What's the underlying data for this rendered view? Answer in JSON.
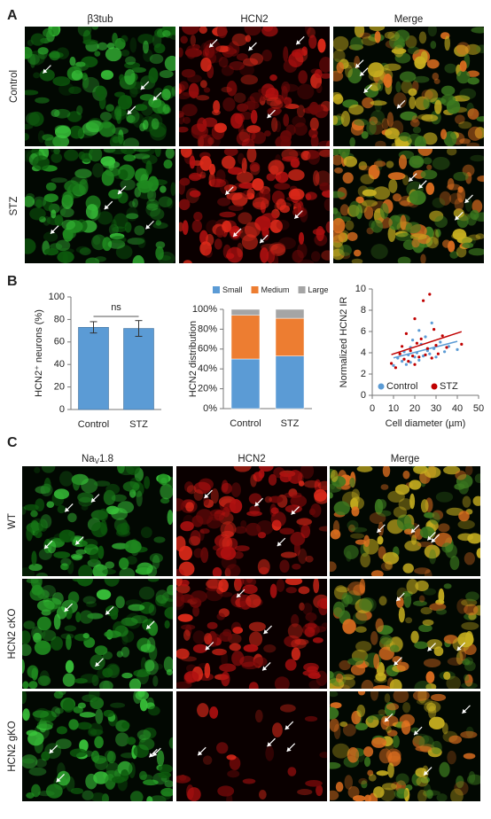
{
  "panel_labels": [
    "A",
    "B",
    "C"
  ],
  "panel_a": {
    "columns": [
      "β3tub",
      "HCN2",
      "Merge"
    ],
    "rows": [
      "Control",
      "STZ"
    ]
  },
  "panel_c": {
    "columns": [
      {
        "base": "Na",
        "sub": "V",
        "rest": "1.8"
      },
      "HCN2",
      "Merge"
    ],
    "rows": [
      "WT",
      "HCN2 cKO",
      "HCN2 gKO"
    ]
  },
  "chart_data": [
    {
      "type": "bar",
      "ylabel": "HCN2⁺ neurons (%)",
      "categories": [
        "Control",
        "STZ"
      ],
      "values": [
        73,
        72
      ],
      "errors": [
        5,
        7
      ],
      "color": "#5b9bd5",
      "ylim": [
        0,
        100
      ],
      "yticks": [
        0,
        20,
        40,
        60,
        80,
        100
      ],
      "annotation": "ns"
    },
    {
      "type": "stacked_bar",
      "ylabel": "HCN2 distribution",
      "categories": [
        "Control",
        "STZ"
      ],
      "series": [
        {
          "name": "Small",
          "color": "#5b9bd5",
          "values": [
            50,
            53
          ]
        },
        {
          "name": "Medium",
          "color": "#ed7d31",
          "values": [
            44,
            38
          ]
        },
        {
          "name": "Large",
          "color": "#a5a5a5",
          "values": [
            6,
            9
          ]
        }
      ],
      "ylim": [
        0,
        100
      ],
      "yticks": [
        {
          "value": 0,
          "label": "0%"
        },
        {
          "value": 20,
          "label": "20%"
        },
        {
          "value": 40,
          "label": "40%"
        },
        {
          "value": 60,
          "label": "60%"
        },
        {
          "value": 80,
          "label": "80%"
        },
        {
          "value": 100,
          "label": "100%"
        }
      ],
      "legend": "top"
    },
    {
      "type": "scatter",
      "ylabel": "Normalized HCN2 IR",
      "xlabel": "Cell diameter (µm)",
      "xlim": [
        0,
        50
      ],
      "xticks": [
        0,
        10,
        20,
        30,
        40,
        50
      ],
      "ylim": [
        0,
        10
      ],
      "yticks": [
        0,
        2,
        4,
        6,
        8,
        10
      ],
      "series": [
        {
          "name": "Control",
          "color": "#5b9bd5",
          "x": [
            10,
            12,
            14,
            15,
            16,
            17,
            18,
            18,
            19,
            20,
            21,
            22,
            22,
            23,
            24,
            25,
            26,
            27,
            28,
            29,
            30,
            32,
            34,
            36,
            40
          ],
          "values": [
            2.8,
            3.5,
            3.2,
            4.1,
            2.9,
            3.8,
            4.5,
            3.1,
            5.2,
            3.6,
            4.0,
            6.1,
            3.3,
            4.8,
            3.7,
            5.5,
            4.2,
            3.9,
            6.8,
            4.4,
            3.6,
            5.0,
            4.1,
            4.6,
            4.3
          ]
        },
        {
          "name": "STZ",
          "color": "#c00000",
          "x": [
            9,
            11,
            13,
            14,
            15,
            16,
            17,
            18,
            19,
            20,
            20,
            21,
            22,
            23,
            24,
            25,
            26,
            27,
            28,
            29,
            30,
            31,
            33,
            35,
            42
          ],
          "values": [
            3.0,
            2.6,
            3.9,
            4.6,
            3.4,
            5.8,
            3.2,
            4.2,
            3.7,
            7.2,
            2.9,
            4.9,
            3.6,
            5.3,
            8.9,
            3.8,
            4.4,
            9.5,
            3.5,
            6.2,
            4.7,
            3.9,
            5.6,
            4.5,
            4.8
          ]
        }
      ],
      "legend": "bottom"
    }
  ]
}
